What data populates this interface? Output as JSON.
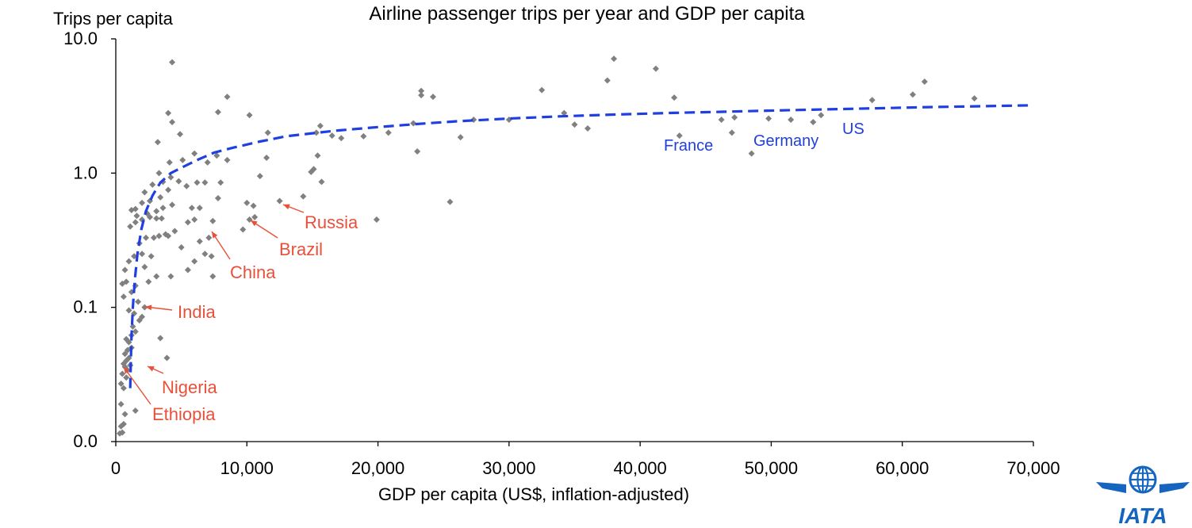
{
  "chart_data": {
    "type": "scatter",
    "title": "Airline passenger trips per year and GDP per capita",
    "xlabel": "GDP per capita (US$, inflation-adjusted)",
    "ylabel": "Trips per capita",
    "x_scale": "linear",
    "y_scale": "log",
    "xlim": [
      0,
      70000
    ],
    "ylim": [
      0.01,
      10
    ],
    "x_ticks": [
      {
        "value": 0,
        "label": "0"
      },
      {
        "value": 10000,
        "label": "10,000"
      },
      {
        "value": 20000,
        "label": "20,000"
      },
      {
        "value": 30000,
        "label": "30,000"
      },
      {
        "value": 40000,
        "label": "40,000"
      },
      {
        "value": 50000,
        "label": "50,000"
      },
      {
        "value": 60000,
        "label": "60,000"
      },
      {
        "value": 70000,
        "label": "70,000"
      }
    ],
    "y_ticks": [
      {
        "value": 0.01,
        "label": "0.0"
      },
      {
        "value": 0.1,
        "label": "0.1"
      },
      {
        "value": 1,
        "label": "1.0"
      },
      {
        "value": 10,
        "label": "10.0"
      }
    ],
    "grid": false,
    "marker_color": "#808080",
    "trend_color": "#1f3fe0",
    "highlight_color": "#e8503a",
    "advanced_color": "#1f3fe0",
    "points": [
      [
        300,
        0.0115
      ],
      [
        500,
        0.0117
      ],
      [
        400,
        0.013
      ],
      [
        600,
        0.0135
      ],
      [
        700,
        0.016
      ],
      [
        400,
        0.019
      ],
      [
        1500,
        0.017
      ],
      [
        400,
        0.027
      ],
      [
        600,
        0.025
      ],
      [
        800,
        0.03
      ],
      [
        500,
        0.032
      ],
      [
        700,
        0.036
      ],
      [
        900,
        0.034
      ],
      [
        1100,
        0.037
      ],
      [
        600,
        0.038
      ],
      [
        800,
        0.04
      ],
      [
        1000,
        0.042
      ],
      [
        700,
        0.045
      ],
      [
        900,
        0.048
      ],
      [
        1200,
        0.05
      ],
      [
        1000,
        0.055
      ],
      [
        800,
        0.058
      ],
      [
        1200,
        0.062
      ],
      [
        1500,
        0.066
      ],
      [
        1300,
        0.072
      ],
      [
        1800,
        0.08
      ],
      [
        2000,
        0.085
      ],
      [
        1400,
        0.09
      ],
      [
        1000,
        0.095
      ],
      [
        2200,
        0.1
      ],
      [
        1700,
        0.11
      ],
      [
        600,
        0.12
      ],
      [
        1200,
        0.13
      ],
      [
        1500,
        0.145
      ],
      [
        2500,
        0.155
      ],
      [
        500,
        0.15
      ],
      [
        800,
        0.155
      ],
      [
        700,
        0.19
      ],
      [
        1000,
        0.22
      ],
      [
        1400,
        0.24
      ],
      [
        2000,
        0.25
      ],
      [
        2700,
        0.24
      ],
      [
        3100,
        0.17
      ],
      [
        2200,
        0.2
      ],
      [
        1800,
        0.3
      ],
      [
        2300,
        0.33
      ],
      [
        2900,
        0.33
      ],
      [
        3300,
        0.34
      ],
      [
        3800,
        0.35
      ],
      [
        4000,
        0.34
      ],
      [
        4500,
        0.37
      ],
      [
        1100,
        0.4
      ],
      [
        1500,
        0.43
      ],
      [
        2000,
        0.45
      ],
      [
        2600,
        0.47
      ],
      [
        3100,
        0.46
      ],
      [
        3500,
        0.46
      ],
      [
        1600,
        0.48
      ],
      [
        2400,
        0.5
      ],
      [
        3100,
        0.52
      ],
      [
        3600,
        0.55
      ],
      [
        4300,
        0.58
      ],
      [
        1500,
        0.54
      ],
      [
        1200,
        0.53
      ],
      [
        2000,
        0.6
      ],
      [
        2600,
        0.62
      ],
      [
        3400,
        0.66
      ],
      [
        4000,
        0.75
      ],
      [
        2200,
        0.72
      ],
      [
        2800,
        0.82
      ],
      [
        3600,
        0.86
      ],
      [
        4200,
        0.93
      ],
      [
        4800,
        0.87
      ],
      [
        3300,
        1.0
      ],
      [
        4100,
        1.2
      ],
      [
        5100,
        1.25
      ],
      [
        3200,
        1.7
      ],
      [
        4300,
        2.4
      ],
      [
        4000,
        2.8
      ],
      [
        4900,
        1.95
      ],
      [
        4300,
        6.7
      ],
      [
        4200,
        0.17
      ],
      [
        3400,
        0.059
      ],
      [
        3900,
        0.042
      ],
      [
        5500,
        0.19
      ],
      [
        6000,
        0.22
      ],
      [
        6800,
        0.25
      ],
      [
        7300,
        0.24
      ],
      [
        7400,
        0.17
      ],
      [
        5000,
        0.28
      ],
      [
        6400,
        0.31
      ],
      [
        7100,
        0.33
      ],
      [
        5500,
        0.43
      ],
      [
        6000,
        0.45
      ],
      [
        5800,
        0.55
      ],
      [
        6400,
        0.55
      ],
      [
        5400,
        0.8
      ],
      [
        6200,
        0.85
      ],
      [
        6800,
        0.85
      ],
      [
        7000,
        1.2
      ],
      [
        7700,
        1.35
      ],
      [
        6000,
        1.4
      ],
      [
        7400,
        0.44
      ],
      [
        7800,
        0.65
      ],
      [
        8000,
        0.85
      ],
      [
        8500,
        1.25
      ],
      [
        9700,
        0.38
      ],
      [
        10200,
        0.45
      ],
      [
        10000,
        0.6
      ],
      [
        10500,
        0.57
      ],
      [
        10600,
        0.47
      ],
      [
        11000,
        0.95
      ],
      [
        11500,
        1.3
      ],
      [
        7800,
        2.85
      ],
      [
        8500,
        3.7
      ],
      [
        10200,
        2.7
      ],
      [
        11600,
        2.0
      ],
      [
        12500,
        0.62
      ],
      [
        14300,
        0.67
      ],
      [
        14900,
        1.02
      ],
      [
        15100,
        1.07
      ],
      [
        15400,
        1.35
      ],
      [
        15300,
        2.0
      ],
      [
        15600,
        2.25
      ],
      [
        15700,
        0.86
      ],
      [
        16500,
        1.9
      ],
      [
        17200,
        1.82
      ],
      [
        18900,
        1.88
      ],
      [
        19900,
        0.45
      ],
      [
        20800,
        2.0
      ],
      [
        22700,
        2.35
      ],
      [
        23000,
        1.45
      ],
      [
        23300,
        3.8
      ],
      [
        23300,
        4.1
      ],
      [
        24200,
        3.7
      ],
      [
        25500,
        0.61
      ],
      [
        26300,
        1.85
      ],
      [
        27300,
        2.5
      ],
      [
        30000,
        2.5
      ],
      [
        32500,
        4.15
      ],
      [
        34200,
        2.8
      ],
      [
        35000,
        2.3
      ],
      [
        36000,
        2.15
      ],
      [
        37500,
        4.9
      ],
      [
        38000,
        7.1
      ],
      [
        41200,
        6.0
      ],
      [
        42600,
        3.65
      ],
      [
        43000,
        1.9
      ],
      [
        46200,
        2.5
      ],
      [
        47000,
        2.0
      ],
      [
        47200,
        2.6
      ],
      [
        48500,
        1.4
      ],
      [
        49800,
        2.55
      ],
      [
        51500,
        2.5
      ],
      [
        53200,
        2.4
      ],
      [
        53800,
        2.7
      ],
      [
        57700,
        3.5
      ],
      [
        60800,
        3.85
      ],
      [
        61700,
        4.8
      ],
      [
        65500,
        3.6
      ]
    ],
    "trend_line": [
      [
        1100,
        0.025
      ],
      [
        1150,
        0.04
      ],
      [
        1200,
        0.06
      ],
      [
        1300,
        0.1
      ],
      [
        1450,
        0.16
      ],
      [
        1650,
        0.25
      ],
      [
        1950,
        0.38
      ],
      [
        2300,
        0.52
      ],
      [
        2800,
        0.68
      ],
      [
        3400,
        0.85
      ],
      [
        4200,
        1.0
      ],
      [
        5200,
        1.12
      ],
      [
        6200,
        1.25
      ],
      [
        7500,
        1.42
      ],
      [
        9000,
        1.55
      ],
      [
        11000,
        1.72
      ],
      [
        13000,
        1.88
      ],
      [
        15000,
        1.98
      ],
      [
        17000,
        2.08
      ],
      [
        20000,
        2.2
      ],
      [
        23000,
        2.32
      ],
      [
        26000,
        2.43
      ],
      [
        30000,
        2.55
      ],
      [
        34000,
        2.65
      ],
      [
        38000,
        2.73
      ],
      [
        42000,
        2.8
      ],
      [
        46000,
        2.86
      ],
      [
        50000,
        2.92
      ],
      [
        54000,
        2.98
      ],
      [
        58000,
        3.04
      ],
      [
        62000,
        3.1
      ],
      [
        66000,
        3.15
      ],
      [
        70000,
        3.2
      ]
    ],
    "annotations": [
      {
        "text": "Russia",
        "group": "highlight"
      },
      {
        "text": "Brazil",
        "group": "highlight"
      },
      {
        "text": "China",
        "group": "highlight"
      },
      {
        "text": "India",
        "group": "highlight"
      },
      {
        "text": "Nigeria",
        "group": "highlight"
      },
      {
        "text": "Ethiopia",
        "group": "highlight"
      },
      {
        "text": "France",
        "group": "advanced"
      },
      {
        "text": "Germany",
        "group": "advanced"
      },
      {
        "text": "US",
        "group": "advanced"
      }
    ]
  },
  "logo": {
    "text": "IATA",
    "color": "#1565c0"
  }
}
